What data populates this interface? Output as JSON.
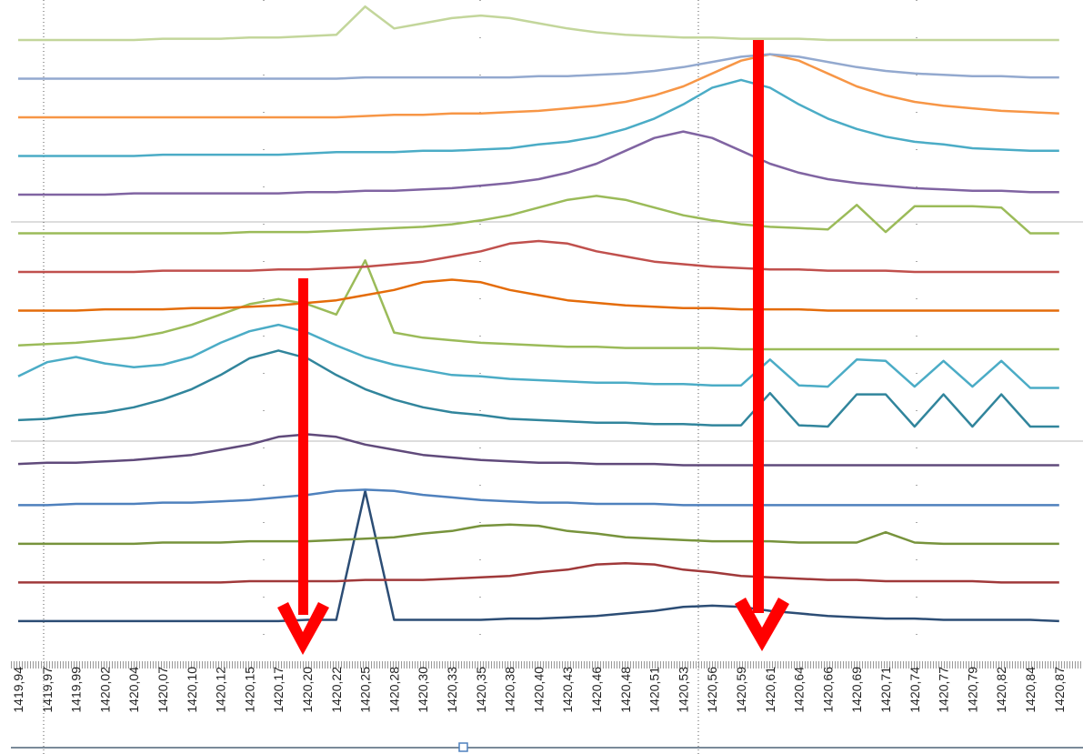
{
  "chart_data": {
    "type": "line",
    "categories": [
      "1419,94",
      "1419,97",
      "1419,99",
      "1420,02",
      "1420,04",
      "1420,07",
      "1420,10",
      "1420,12",
      "1420,15",
      "1420,17",
      "1420,20",
      "1420,22",
      "1420,25",
      "1420,28",
      "1420,30",
      "1420,33",
      "1420,35",
      "1420,38",
      "1420,40",
      "1420,43",
      "1420,46",
      "1420,48",
      "1420,51",
      "1420,53",
      "1420,56",
      "1420,59",
      "1420,61",
      "1420,64",
      "1420,66",
      "1420,69",
      "1420,71",
      "1420,74",
      "1420,77",
      "1420,79",
      "1420,82",
      "1420,84",
      "1420,87"
    ],
    "ylim": [
      0,
      48
    ],
    "series": [
      {
        "color": "#2c4d75",
        "values": [
          0.5,
          0.5,
          0.5,
          0.5,
          0.5,
          0.5,
          0.5,
          0.5,
          0.5,
          0.5,
          0.6,
          0.6,
          10.6,
          0.6,
          0.6,
          0.6,
          0.6,
          0.7,
          0.7,
          0.8,
          0.9,
          1.1,
          1.3,
          1.6,
          1.7,
          1.6,
          1.3,
          1.1,
          0.9,
          0.8,
          0.7,
          0.7,
          0.6,
          0.6,
          0.6,
          0.6,
          0.5
        ]
      },
      {
        "color": "#a0393a",
        "values": [
          3.5,
          3.5,
          3.5,
          3.5,
          3.5,
          3.5,
          3.5,
          3.5,
          3.6,
          3.6,
          3.6,
          3.6,
          3.7,
          3.7,
          3.7,
          3.8,
          3.9,
          4.0,
          4.3,
          4.5,
          4.9,
          5.0,
          4.9,
          4.5,
          4.3,
          4.0,
          3.9,
          3.8,
          3.7,
          3.7,
          3.6,
          3.6,
          3.6,
          3.6,
          3.5,
          3.5,
          3.5
        ]
      },
      {
        "color": "#77933c",
        "values": [
          6.5,
          6.5,
          6.5,
          6.5,
          6.5,
          6.6,
          6.6,
          6.6,
          6.7,
          6.7,
          6.7,
          6.8,
          6.9,
          7.0,
          7.3,
          7.5,
          7.9,
          8.0,
          7.9,
          7.5,
          7.3,
          7.0,
          6.9,
          6.8,
          6.7,
          6.7,
          6.7,
          6.6,
          6.6,
          6.6,
          7.4,
          6.6,
          6.5,
          6.5,
          6.5,
          6.5,
          6.5
        ]
      },
      {
        "color": "#4f81bd",
        "values": [
          9.5,
          9.5,
          9.6,
          9.6,
          9.6,
          9.7,
          9.7,
          9.8,
          9.9,
          10.1,
          10.3,
          10.6,
          10.7,
          10.6,
          10.3,
          10.1,
          9.9,
          9.8,
          9.7,
          9.7,
          9.6,
          9.6,
          9.6,
          9.5,
          9.5,
          9.5,
          9.5,
          9.5,
          9.5,
          9.5,
          9.5,
          9.5,
          9.5,
          9.5,
          9.5,
          9.5,
          9.5
        ]
      },
      {
        "color": "#604a7b",
        "values": [
          12.7,
          12.8,
          12.8,
          12.9,
          13.0,
          13.2,
          13.4,
          13.8,
          14.2,
          14.8,
          15.0,
          14.8,
          14.2,
          13.8,
          13.4,
          13.2,
          13.0,
          12.9,
          12.8,
          12.8,
          12.7,
          12.7,
          12.7,
          12.6,
          12.6,
          12.6,
          12.6,
          12.6,
          12.6,
          12.6,
          12.6,
          12.6,
          12.6,
          12.6,
          12.6,
          12.6,
          12.6
        ]
      },
      {
        "color": "#31859c",
        "values": [
          16.1,
          16.2,
          16.5,
          16.7,
          17.1,
          17.7,
          18.5,
          19.6,
          20.9,
          21.5,
          20.9,
          19.6,
          18.5,
          17.7,
          17.1,
          16.7,
          16.5,
          16.2,
          16.1,
          16.0,
          15.9,
          15.9,
          15.8,
          15.8,
          15.7,
          15.7,
          18.2,
          15.7,
          15.6,
          18.1,
          18.1,
          15.6,
          18.1,
          15.6,
          18.1,
          15.6,
          15.6
        ]
      },
      {
        "color": "#4bacc6",
        "values": [
          19.5,
          20.6,
          21.0,
          20.5,
          20.2,
          20.4,
          21.0,
          22.1,
          23.0,
          23.5,
          22.9,
          21.9,
          21.0,
          20.4,
          20.0,
          19.6,
          19.5,
          19.3,
          19.2,
          19.1,
          19.0,
          19.0,
          18.9,
          18.9,
          18.8,
          18.8,
          20.8,
          18.8,
          18.7,
          20.8,
          20.7,
          18.7,
          20.7,
          18.7,
          20.7,
          18.6,
          18.6
        ]
      },
      {
        "color": "#9bbb59",
        "values": [
          21.9,
          22.0,
          22.1,
          22.3,
          22.5,
          22.9,
          23.5,
          24.3,
          25.1,
          25.5,
          25.1,
          24.3,
          28.5,
          22.9,
          22.5,
          22.3,
          22.1,
          22.0,
          21.9,
          21.8,
          21.8,
          21.7,
          21.7,
          21.7,
          21.7,
          21.6,
          21.6,
          21.6,
          21.6,
          21.6,
          21.6,
          21.6,
          21.6,
          21.6,
          21.6,
          21.6,
          21.6
        ]
      },
      {
        "color": "#e46c0a",
        "values": [
          24.6,
          24.6,
          24.6,
          24.7,
          24.7,
          24.7,
          24.8,
          24.8,
          24.9,
          25.0,
          25.2,
          25.4,
          25.8,
          26.2,
          26.8,
          27.0,
          26.8,
          26.2,
          25.8,
          25.4,
          25.2,
          25.0,
          24.9,
          24.8,
          24.8,
          24.7,
          24.7,
          24.7,
          24.6,
          24.6,
          24.6,
          24.6,
          24.6,
          24.6,
          24.6,
          24.6,
          24.6
        ]
      },
      {
        "color": "#c0504d",
        "values": [
          27.6,
          27.6,
          27.6,
          27.6,
          27.6,
          27.7,
          27.7,
          27.7,
          27.7,
          27.8,
          27.8,
          27.9,
          28.0,
          28.2,
          28.4,
          28.8,
          29.2,
          29.8,
          30.0,
          29.8,
          29.2,
          28.8,
          28.4,
          28.2,
          28.0,
          27.9,
          27.8,
          27.8,
          27.7,
          27.7,
          27.7,
          27.6,
          27.6,
          27.6,
          27.6,
          27.6,
          27.6
        ]
      },
      {
        "color": "#9bbb59",
        "values": [
          30.6,
          30.6,
          30.6,
          30.6,
          30.6,
          30.6,
          30.6,
          30.6,
          30.7,
          30.7,
          30.7,
          30.8,
          30.9,
          31.0,
          31.1,
          31.3,
          31.6,
          32.0,
          32.6,
          33.2,
          33.5,
          33.2,
          32.6,
          32.0,
          31.6,
          31.3,
          31.1,
          31.0,
          30.9,
          32.8,
          30.7,
          32.7,
          32.7,
          32.7,
          32.6,
          30.6,
          30.6
        ]
      },
      {
        "color": "#8064a2",
        "values": [
          33.6,
          33.6,
          33.6,
          33.6,
          33.7,
          33.7,
          33.7,
          33.7,
          33.7,
          33.7,
          33.8,
          33.8,
          33.9,
          33.9,
          34.0,
          34.1,
          34.3,
          34.5,
          34.8,
          35.3,
          36.0,
          37.0,
          38.0,
          38.5,
          38.0,
          37.0,
          36.0,
          35.3,
          34.8,
          34.5,
          34.3,
          34.1,
          34.0,
          33.9,
          33.9,
          33.8,
          33.8
        ]
      },
      {
        "color": "#4bacc6",
        "values": [
          36.6,
          36.6,
          36.6,
          36.6,
          36.6,
          36.7,
          36.7,
          36.7,
          36.7,
          36.7,
          36.8,
          36.9,
          36.9,
          36.9,
          37.0,
          37.0,
          37.1,
          37.2,
          37.5,
          37.7,
          38.1,
          38.7,
          39.5,
          40.6,
          41.9,
          42.5,
          41.9,
          40.6,
          39.5,
          38.7,
          38.1,
          37.7,
          37.5,
          37.2,
          37.1,
          37.0,
          37.0
        ]
      },
      {
        "color": "#f79646",
        "values": [
          39.6,
          39.6,
          39.6,
          39.6,
          39.6,
          39.6,
          39.6,
          39.6,
          39.6,
          39.6,
          39.6,
          39.6,
          39.7,
          39.8,
          39.8,
          39.9,
          39.9,
          40.0,
          40.1,
          40.3,
          40.5,
          40.8,
          41.3,
          42.0,
          43.0,
          44.0,
          44.5,
          44.0,
          43.0,
          42.0,
          41.3,
          40.8,
          40.5,
          40.3,
          40.1,
          40.0,
          39.9
        ]
      },
      {
        "color": "#93a9cf",
        "values": [
          42.6,
          42.6,
          42.6,
          42.6,
          42.6,
          42.6,
          42.6,
          42.6,
          42.6,
          42.6,
          42.6,
          42.6,
          42.7,
          42.7,
          42.7,
          42.7,
          42.7,
          42.7,
          42.8,
          42.8,
          42.9,
          43.0,
          43.2,
          43.5,
          43.9,
          44.3,
          44.5,
          44.3,
          43.9,
          43.5,
          43.2,
          43.0,
          42.9,
          42.8,
          42.8,
          42.7,
          42.7
        ]
      },
      {
        "color": "#c3d69b",
        "values": [
          45.6,
          45.6,
          45.6,
          45.6,
          45.6,
          45.7,
          45.7,
          45.7,
          45.8,
          45.8,
          45.9,
          46.0,
          48.2,
          46.5,
          46.9,
          47.3,
          47.5,
          47.3,
          46.9,
          46.5,
          46.2,
          46.0,
          45.9,
          45.8,
          45.8,
          45.7,
          45.7,
          45.7,
          45.6,
          45.6,
          45.6,
          45.6,
          45.6,
          45.6,
          45.6,
          45.6,
          45.6
        ]
      }
    ]
  }
}
